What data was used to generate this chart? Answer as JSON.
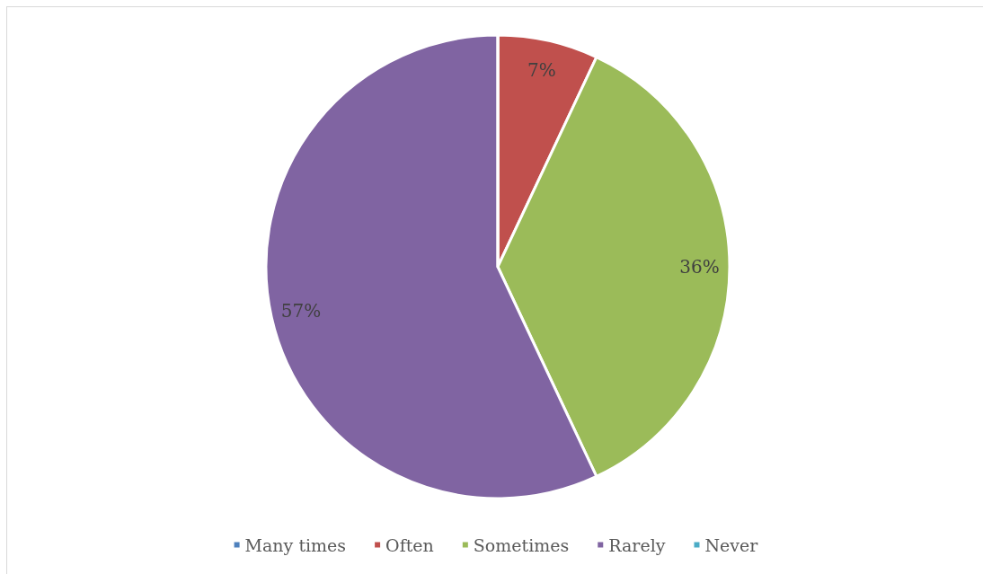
{
  "chart_data": {
    "type": "pie",
    "categories": [
      "Many times",
      "Often",
      "Sometimes",
      "Rarely",
      "Never"
    ],
    "values": [
      0,
      7,
      36,
      57,
      0
    ],
    "colors": [
      "#4f81bd",
      "#c0504d",
      "#9bbb59",
      "#8064a2",
      "#4bacc6"
    ],
    "value_labels": [
      null,
      "7%",
      "36%",
      "57%",
      null
    ],
    "legend": "bottom"
  }
}
